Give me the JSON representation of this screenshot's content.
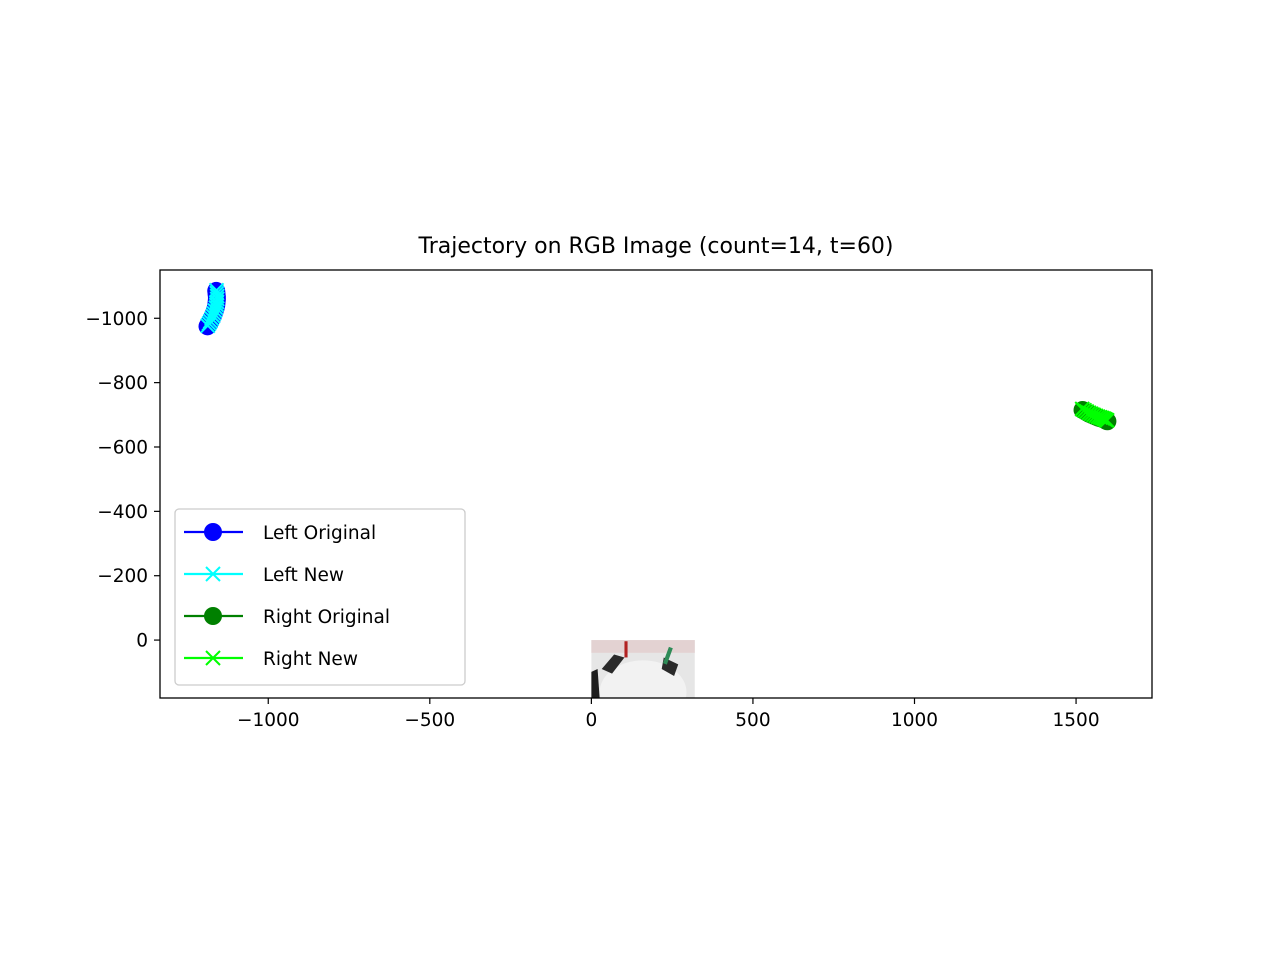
{
  "chart_data": {
    "type": "scatter",
    "title": "Trajectory on RGB Image (count=14, t=60)",
    "xlabel": "",
    "ylabel": "",
    "xlim": [
      -1335,
      1735
    ],
    "ylim": [
      180,
      -1150
    ],
    "y_inverted": true,
    "grid": false,
    "legend_position": "lower-left",
    "xticks": [
      -1000,
      -500,
      0,
      500,
      1000,
      1500
    ],
    "yticks": [
      -1000,
      -800,
      -600,
      -400,
      -200,
      0
    ],
    "background_image": {
      "x_range": [
        0,
        320
      ],
      "y_range": [
        0,
        180
      ]
    },
    "series": [
      {
        "name": "Left Original",
        "color": "#0000ff",
        "marker": "circle",
        "x": [
          -1188,
          -1184,
          -1180,
          -1176,
          -1172,
          -1169,
          -1166,
          -1163,
          -1161,
          -1160,
          -1159,
          -1159,
          -1160,
          -1161
        ],
        "y": [
          -975,
          -982,
          -989,
          -997,
          -1005,
          -1013,
          -1022,
          -1031,
          -1040,
          -1049,
          -1058,
          -1067,
          -1076,
          -1085
        ]
      },
      {
        "name": "Left New",
        "color": "#00ffff",
        "marker": "x",
        "x": [
          -1187,
          -1183,
          -1179,
          -1175,
          -1171,
          -1168,
          -1165,
          -1162,
          -1160,
          -1159,
          -1158,
          -1158,
          -1159,
          -1160
        ],
        "y": [
          -977,
          -984,
          -991,
          -999,
          -1007,
          -1015,
          -1024,
          -1033,
          -1042,
          -1051,
          -1060,
          -1069,
          -1078,
          -1087
        ]
      },
      {
        "name": "Right Original",
        "color": "#008000",
        "marker": "circle",
        "x": [
          1520,
          1527,
          1534,
          1541,
          1548,
          1555,
          1562,
          1569,
          1576,
          1582,
          1587,
          1591,
          1594,
          1597
        ],
        "y": [
          -715,
          -711,
          -707,
          -703,
          -700,
          -697,
          -694,
          -691,
          -689,
          -687,
          -685,
          -683,
          -681,
          -680
        ]
      },
      {
        "name": "Right New",
        "color": "#00ff00",
        "marker": "x",
        "x": [
          1519,
          1526,
          1533,
          1540,
          1547,
          1554,
          1561,
          1568,
          1575,
          1581,
          1586,
          1590,
          1593,
          1596
        ],
        "y": [
          -718,
          -714,
          -710,
          -706,
          -703,
          -700,
          -697,
          -694,
          -692,
          -690,
          -688,
          -686,
          -684,
          -683
        ]
      }
    ]
  }
}
